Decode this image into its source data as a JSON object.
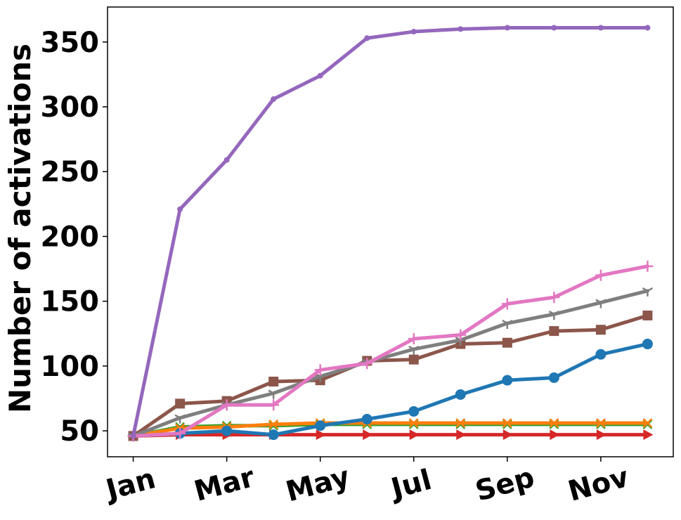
{
  "chart_data": {
    "type": "line",
    "title": "",
    "xlabel": "",
    "ylabel": "Number of activations",
    "x": [
      1,
      2,
      3,
      4,
      5,
      6,
      7,
      8,
      9,
      10,
      11,
      12
    ],
    "xlim": [
      0.45,
      12.55
    ],
    "ylim": [
      30,
      377
    ],
    "xticks": [
      {
        "value": 1,
        "label": "Jan"
      },
      {
        "value": 3,
        "label": "Mar"
      },
      {
        "value": 5,
        "label": "May"
      },
      {
        "value": 7,
        "label": "Jul"
      },
      {
        "value": 9,
        "label": "Sep"
      },
      {
        "value": 11,
        "label": "Nov"
      }
    ],
    "yticks": [
      50,
      100,
      150,
      200,
      250,
      300,
      350
    ],
    "grid": false,
    "legend": "none",
    "series": [
      {
        "color": "#9467bd",
        "marker": "point",
        "values": [
          46,
          221,
          259,
          306,
          324,
          353,
          358,
          360,
          361,
          361,
          361,
          361
        ]
      },
      {
        "color": "#e377c2",
        "marker": "plus",
        "values": [
          46,
          48,
          70,
          70,
          97,
          102,
          121,
          124,
          148,
          153,
          170,
          177
        ]
      },
      {
        "color": "#7f7f7f",
        "marker": "tri",
        "values": [
          46,
          60,
          70,
          79,
          92,
          103,
          113,
          120,
          133,
          140,
          149,
          158
        ]
      },
      {
        "color": "#8c564b",
        "marker": "square",
        "values": [
          46,
          71,
          73,
          88,
          89,
          104,
          105,
          117,
          118,
          127,
          128,
          139
        ]
      },
      {
        "color": "#1f77b4",
        "marker": "circle",
        "values": [
          46,
          48,
          50,
          47,
          54,
          59,
          65,
          78,
          89,
          91,
          109,
          117
        ]
      },
      {
        "color": "#ff7f0e",
        "marker": "x",
        "values": [
          46,
          52,
          53,
          55,
          56,
          56,
          56,
          56,
          56,
          56,
          56,
          56
        ]
      },
      {
        "color": "#2ca02c",
        "marker": "x",
        "values": [
          46,
          53,
          54,
          54,
          55,
          55,
          55,
          55,
          55,
          55,
          55,
          55
        ]
      },
      {
        "color": "#d62728",
        "marker": "triangle-right",
        "values": [
          46,
          47,
          47,
          47,
          47,
          47,
          47,
          47,
          47,
          47,
          47,
          47
        ]
      }
    ]
  }
}
